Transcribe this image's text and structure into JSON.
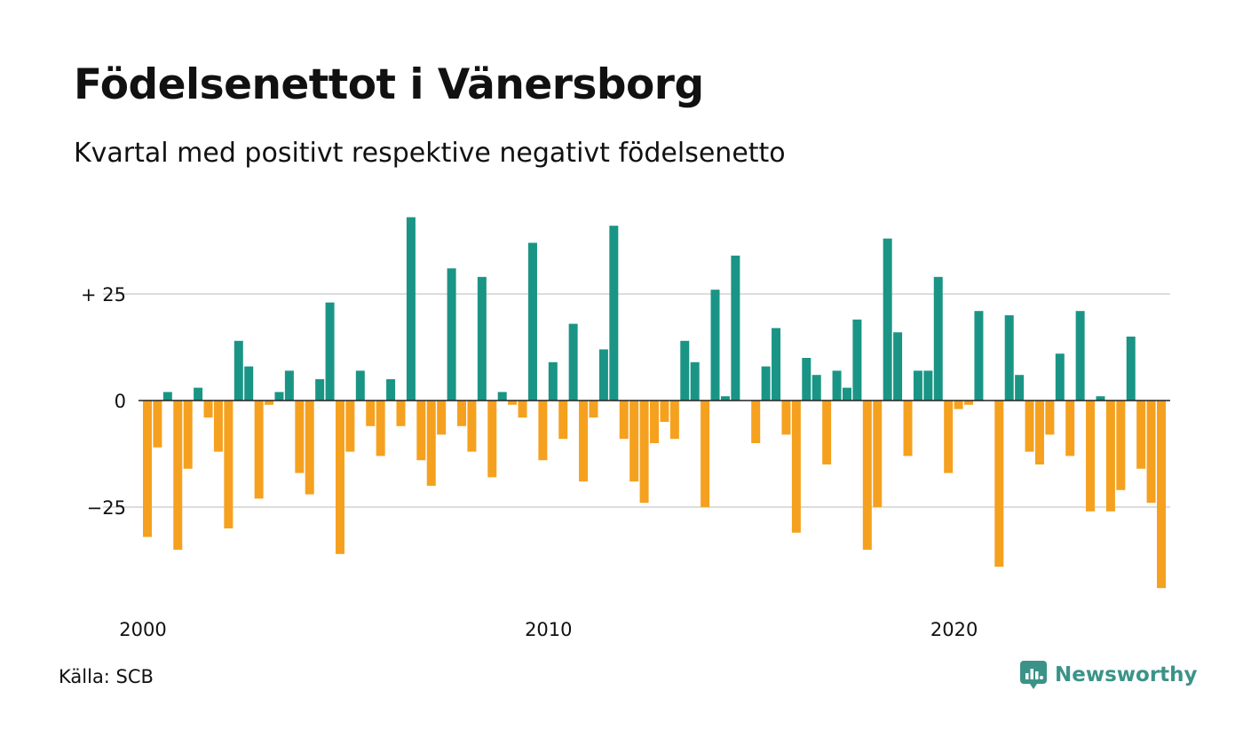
{
  "chart_data": {
    "type": "bar",
    "title": "Födelsenettot i Vänersborg",
    "subtitle": "Kvartal med positivt respektive negativt födelsenetto",
    "xlabel": "",
    "ylabel": "",
    "x_start": "2000 Q1",
    "x_ticks": [
      "2000",
      "2010",
      "2020"
    ],
    "y_ticks": [
      {
        "value": 25,
        "label": "+ 25"
      },
      {
        "value": 0,
        "label": "0"
      },
      {
        "value": -25,
        "label": "−25"
      }
    ],
    "ylim": [
      -48,
      45
    ],
    "grid": true,
    "colors": {
      "positive": "#1a9585",
      "negative": "#f5a11f",
      "grid": "#dddddd",
      "axis": "#222222"
    },
    "values": [
      -32,
      -11,
      2,
      -35,
      -16,
      3,
      -4,
      -12,
      -30,
      14,
      8,
      -23,
      -1,
      2,
      7,
      -17,
      -22,
      5,
      23,
      -36,
      -12,
      7,
      -6,
      -13,
      5,
      -6,
      43,
      -14,
      -20,
      -8,
      31,
      -6,
      -12,
      29,
      -18,
      2,
      -1,
      -4,
      37,
      -14,
      9,
      -9,
      18,
      -19,
      -4,
      12,
      41,
      -9,
      -19,
      -24,
      -10,
      -5,
      -9,
      14,
      9,
      -25,
      26,
      1,
      34,
      0,
      -10,
      8,
      17,
      -8,
      -31,
      10,
      6,
      -15,
      7,
      3,
      19,
      -35,
      -25,
      38,
      16,
      -13,
      7,
      7,
      29,
      -17,
      -2,
      -1,
      21,
      0,
      -39,
      20,
      6,
      -12,
      -15,
      -8,
      11,
      -13,
      21,
      -26,
      1,
      -26,
      -21,
      15,
      -16,
      -24,
      -44
    ]
  },
  "footer": {
    "source": "Källa: SCB",
    "brand": "Newsworthy"
  },
  "icons": {
    "brand_logo": "newsworthy-logo-icon"
  }
}
